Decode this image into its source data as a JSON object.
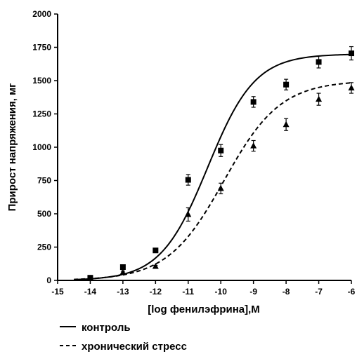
{
  "chart_data": {
    "type": "scatter",
    "xlabel": "[log фенилэфрина],M",
    "ylabel": "Прирост напряжения, мг",
    "xlim": [
      -15,
      -6
    ],
    "ylim": [
      0,
      2000
    ],
    "x_ticks": [
      -15,
      -14,
      -13,
      -12,
      -11,
      -10,
      -9,
      -8,
      -7,
      -6
    ],
    "y_ticks": [
      0,
      250,
      500,
      750,
      1000,
      1250,
      1500,
      1750,
      2000
    ],
    "grid": false,
    "legend_position": "bottom-left",
    "series": [
      {
        "name": "контроль",
        "marker": "square",
        "line": "solid",
        "x": [
          -14,
          -13,
          -12,
          -11,
          -10,
          -9,
          -8,
          -7,
          -6
        ],
        "y": [
          20,
          100,
          225,
          755,
          975,
          1340,
          1470,
          1640,
          1705
        ],
        "err": [
          8,
          15,
          10,
          40,
          45,
          40,
          40,
          45,
          50
        ],
        "fit": {
          "bottom": 0,
          "top": 1700,
          "logEC50": -10.4,
          "hill": 0.6
        }
      },
      {
        "name": "хронический стресс",
        "marker": "triangle",
        "line": "dashed",
        "x": [
          -14,
          -13,
          -12,
          -11,
          -10,
          -9,
          -8,
          -7,
          -6
        ],
        "y": [
          15,
          60,
          105,
          495,
          690,
          1010,
          1170,
          1360,
          1445
        ],
        "err": [
          5,
          10,
          8,
          50,
          40,
          40,
          45,
          45,
          40
        ],
        "fit": {
          "bottom": 0,
          "top": 1500,
          "logEC50": -9.9,
          "hill": 0.5
        }
      }
    ]
  }
}
